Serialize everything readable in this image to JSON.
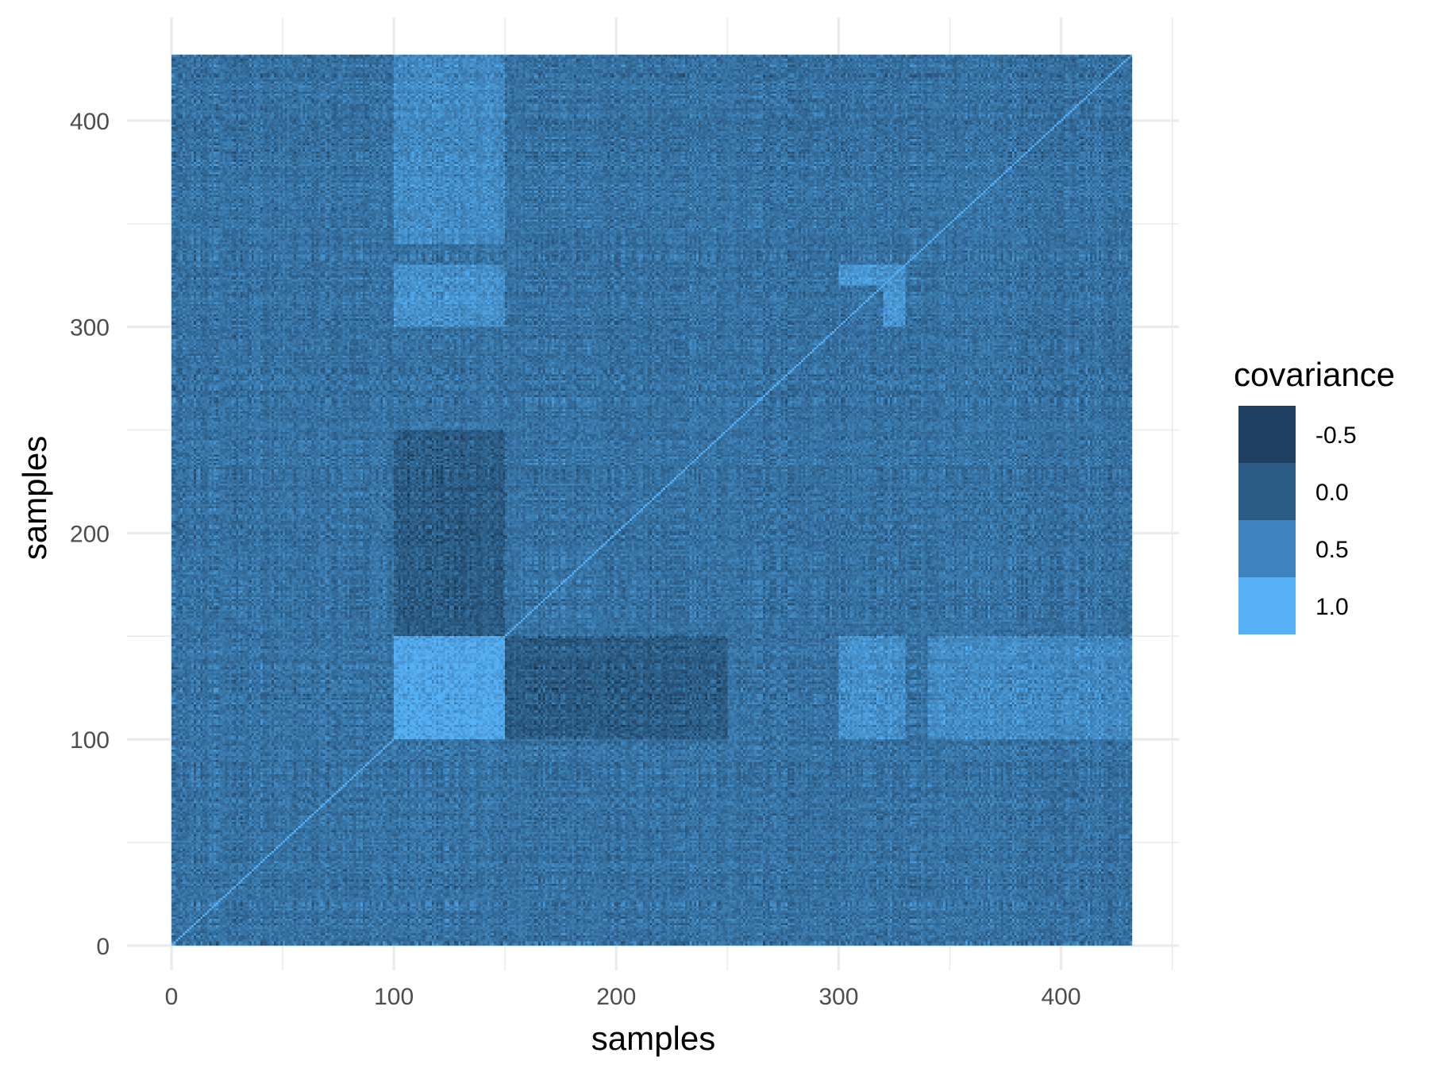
{
  "chart_data": {
    "type": "heatmap",
    "title": "",
    "xlabel": "samples",
    "ylabel": "samples",
    "n_samples": 432,
    "xlim": [
      -20,
      453
    ],
    "ylim": [
      -12,
      450
    ],
    "x_ticks": [
      0,
      100,
      200,
      300,
      400
    ],
    "y_ticks": [
      0,
      100,
      200,
      300,
      400
    ],
    "x_tick_labels": [
      "0",
      "100",
      "200",
      "300",
      "400"
    ],
    "y_tick_labels": [
      "0",
      "100",
      "200",
      "300",
      "400"
    ],
    "diagonal_value": 1.0,
    "blocks": [
      {
        "x": [
          100,
          150
        ],
        "y": [
          100,
          150
        ],
        "covariance": 0.8
      },
      {
        "x": [
          100,
          150
        ],
        "y": [
          150,
          250
        ],
        "covariance": -0.3
      },
      {
        "x": [
          150,
          250
        ],
        "y": [
          100,
          150
        ],
        "covariance": -0.3
      },
      {
        "x": [
          100,
          150
        ],
        "y": [
          300,
          330
        ],
        "covariance": 0.5
      },
      {
        "x": [
          320,
          330
        ],
        "y": [
          300,
          330
        ],
        "covariance": 0.6
      },
      {
        "x": [
          360,
          432
        ],
        "y": [
          100,
          150
        ],
        "covariance": 0.4
      },
      {
        "x": [
          100,
          150
        ],
        "y": [
          340,
          400
        ],
        "covariance": 0.4
      }
    ],
    "grid": true,
    "legend": {
      "title": "covariance",
      "placement": "right",
      "items": [
        {
          "label": "-0.5",
          "color": "#1f3f60"
        },
        {
          "label": "0.0",
          "color": "#2b5b87"
        },
        {
          "label": "0.5",
          "color": "#3e83c0"
        },
        {
          "label": "1.0",
          "color": "#56b1f7"
        }
      ]
    }
  }
}
